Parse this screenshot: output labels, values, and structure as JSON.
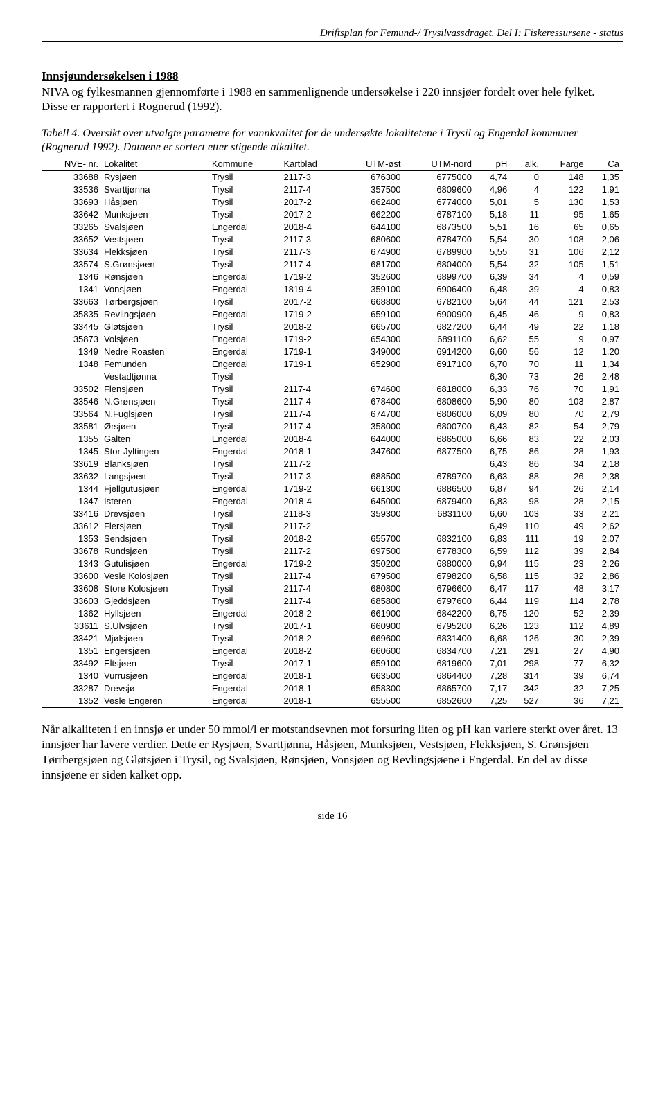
{
  "header": "Driftsplan for Femund-/ Trysilvassdraget. Del I: Fiskeressursene - status",
  "intro": {
    "title": "Innsjøundersøkelsen i 1988",
    "body": "NIVA og fylkesmannen gjennomførte i 1988 en sammenlignende undersøkelse i 220 innsjøer fordelt over hele fylket. Disse er rapportert i Rognerud (1992)."
  },
  "tableCaption": "Tabell 4. Oversikt over utvalgte parametre for vannkvalitet for de undersøkte lokalitetene i Trysil og Engerdal kommuner (Rognerud 1992). Dataene er sortert etter stigende alkalitet.",
  "columns": [
    "NVE- nr.",
    "Lokalitet",
    "Kommune",
    "Kartblad",
    "UTM-øst",
    "UTM-nord",
    "pH",
    "alk.",
    "Farge",
    "Ca"
  ],
  "alignments": [
    "right",
    "left",
    "left",
    "left",
    "right",
    "right",
    "right",
    "right",
    "right",
    "right"
  ],
  "rows": [
    [
      "33688",
      "Rysjøen",
      "Trysil",
      "2117-3",
      "676300",
      "6775000",
      "4,74",
      "0",
      "148",
      "1,35"
    ],
    [
      "33536",
      "Svarttjønna",
      "Trysil",
      "2117-4",
      "357500",
      "6809600",
      "4,96",
      "4",
      "122",
      "1,91"
    ],
    [
      "33693",
      "Håsjøen",
      "Trysil",
      "2017-2",
      "662400",
      "6774000",
      "5,01",
      "5",
      "130",
      "1,53"
    ],
    [
      "33642",
      "Munksjøen",
      "Trysil",
      "2017-2",
      "662200",
      "6787100",
      "5,18",
      "11",
      "95",
      "1,65"
    ],
    [
      "33265",
      "Svalsjøen",
      "Engerdal",
      "2018-4",
      "644100",
      "6873500",
      "5,51",
      "16",
      "65",
      "0,65"
    ],
    [
      "33652",
      "Vestsjøen",
      "Trysil",
      "2117-3",
      "680600",
      "6784700",
      "5,54",
      "30",
      "108",
      "2,06"
    ],
    [
      "33634",
      "Flekksjøen",
      "Trysil",
      "2117-3",
      "674900",
      "6789900",
      "5,55",
      "31",
      "106",
      "2,12"
    ],
    [
      "33574",
      "S.Grønsjøen",
      "Trysil",
      "2117-4",
      "681700",
      "6804000",
      "5,54",
      "32",
      "105",
      "1,51"
    ],
    [
      "1346",
      "Rønsjøen",
      "Engerdal",
      "1719-2",
      "352600",
      "6899700",
      "6,39",
      "34",
      "4",
      "0,59"
    ],
    [
      "1341",
      "Vonsjøen",
      "Engerdal",
      "1819-4",
      "359100",
      "6906400",
      "6,48",
      "39",
      "4",
      "0,83"
    ],
    [
      "33663",
      "Tørbergsjøen",
      "Trysil",
      "2017-2",
      "668800",
      "6782100",
      "5,64",
      "44",
      "121",
      "2,53"
    ],
    [
      "35835",
      "Revlingsjøen",
      "Engerdal",
      "1719-2",
      "659100",
      "6900900",
      "6,45",
      "46",
      "9",
      "0,83"
    ],
    [
      "33445",
      "Gløtsjøen",
      "Trysil",
      "2018-2",
      "665700",
      "6827200",
      "6,44",
      "49",
      "22",
      "1,18"
    ],
    [
      "35873",
      "Volsjøen",
      "Engerdal",
      "1719-2",
      "654300",
      "6891100",
      "6,62",
      "55",
      "9",
      "0,97"
    ],
    [
      "1349",
      "Nedre Roasten",
      "Engerdal",
      "1719-1",
      "349000",
      "6914200",
      "6,60",
      "56",
      "12",
      "1,20"
    ],
    [
      "1348",
      "Femunden",
      "Engerdal",
      "1719-1",
      "652900",
      "6917100",
      "6,70",
      "70",
      "11",
      "1,34"
    ],
    [
      "",
      "Vestadtjønna",
      "Trysil",
      "",
      "",
      "",
      "6,30",
      "73",
      "26",
      "2,48"
    ],
    [
      "33502",
      "Flensjøen",
      "Trysil",
      "2117-4",
      "674600",
      "6818000",
      "6,33",
      "76",
      "70",
      "1,91"
    ],
    [
      "33546",
      "N.Grønsjøen",
      "Trysil",
      "2117-4",
      "678400",
      "6808600",
      "5,90",
      "80",
      "103",
      "2,87"
    ],
    [
      "33564",
      "N.Fuglsjøen",
      "Trysil",
      "2117-4",
      "674700",
      "6806000",
      "6,09",
      "80",
      "70",
      "2,79"
    ],
    [
      "33581",
      "Ørsjøen",
      "Trysil",
      "2117-4",
      "358000",
      "6800700",
      "6,43",
      "82",
      "54",
      "2,79"
    ],
    [
      "1355",
      "Galten",
      "Engerdal",
      "2018-4",
      "644000",
      "6865000",
      "6,66",
      "83",
      "22",
      "2,03"
    ],
    [
      "1345",
      "Stor-Jyltingen",
      "Engerdal",
      "2018-1",
      "347600",
      "6877500",
      "6,75",
      "86",
      "28",
      "1,93"
    ],
    [
      "33619",
      "Blanksjøen",
      "Trysil",
      "2117-2",
      "",
      "",
      "6,43",
      "86",
      "34",
      "2,18"
    ],
    [
      "33632",
      "Langsjøen",
      "Trysil",
      "2117-3",
      "688500",
      "6789700",
      "6,63",
      "88",
      "26",
      "2,38"
    ],
    [
      "1344",
      "Fjellgutusjøen",
      "Engerdal",
      "1719-2",
      "661300",
      "6886500",
      "6,87",
      "94",
      "26",
      "2,14"
    ],
    [
      "1347",
      "Isteren",
      "Engerdal",
      "2018-4",
      "645000",
      "6879400",
      "6,83",
      "98",
      "28",
      "2,15"
    ],
    [
      "33416",
      "Drevsjøen",
      "Trysil",
      "2118-3",
      "359300",
      "6831100",
      "6,60",
      "103",
      "33",
      "2,21"
    ],
    [
      "33612",
      "Flersjøen",
      "Trysil",
      "2117-2",
      "",
      "",
      "6,49",
      "110",
      "49",
      "2,62"
    ],
    [
      "1353",
      "Sendsjøen",
      "Trysil",
      "2018-2",
      "655700",
      "6832100",
      "6,83",
      "111",
      "19",
      "2,07"
    ],
    [
      "33678",
      "Rundsjøen",
      "Trysil",
      "2117-2",
      "697500",
      "6778300",
      "6,59",
      "112",
      "39",
      "2,84"
    ],
    [
      "1343",
      "Gutulisjøen",
      "Engerdal",
      "1719-2",
      "350200",
      "6880000",
      "6,94",
      "115",
      "23",
      "2,26"
    ],
    [
      "33600",
      "Vesle Kolosjøen",
      "Trysil",
      "2117-4",
      "679500",
      "6798200",
      "6,58",
      "115",
      "32",
      "2,86"
    ],
    [
      "33608",
      "Store Kolosjøen",
      "Trysil",
      "2117-4",
      "680800",
      "6796600",
      "6,47",
      "117",
      "48",
      "3,17"
    ],
    [
      "33603",
      "Gjeddsjøen",
      "Trysil",
      "2117-4",
      "685800",
      "6797600",
      "6,44",
      "119",
      "114",
      "2,78"
    ],
    [
      "1362",
      "Hyllsjøen",
      "Engerdal",
      "2018-2",
      "661900",
      "6842200",
      "6,75",
      "120",
      "52",
      "2,39"
    ],
    [
      "33611",
      "S.Ulvsjøen",
      "Trysil",
      "2017-1",
      "660900",
      "6795200",
      "6,26",
      "123",
      "112",
      "4,89"
    ],
    [
      "33421",
      "Mjølsjøen",
      "Trysil",
      "2018-2",
      "669600",
      "6831400",
      "6,68",
      "126",
      "30",
      "2,39"
    ],
    [
      "1351",
      "Engersjøen",
      "Engerdal",
      "2018-2",
      "660600",
      "6834700",
      "7,21",
      "291",
      "27",
      "4,90"
    ],
    [
      "33492",
      "Eltsjøen",
      "Trysil",
      "2017-1",
      "659100",
      "6819600",
      "7,01",
      "298",
      "77",
      "6,32"
    ],
    [
      "1340",
      "Vurrusjøen",
      "Engerdal",
      "2018-1",
      "663500",
      "6864400",
      "7,28",
      "314",
      "39",
      "6,74"
    ],
    [
      "33287",
      "Drevsjø",
      "Engerdal",
      "2018-1",
      "658300",
      "6865700",
      "7,17",
      "342",
      "32",
      "7,25"
    ],
    [
      "1352",
      "Vesle Engeren",
      "Engerdal",
      "2018-1",
      "655500",
      "6852600",
      "7,25",
      "527",
      "36",
      "7,21"
    ]
  ],
  "outro": "Når alkaliteten i en innsjø er under 50 mmol/l er motstandsevnen mot forsuring liten og pH kan variere sterkt over året. 13 innsjøer har lavere verdier. Dette er Rysjøen, Svarttjønna, Håsjøen, Munksjøen, Vestsjøen, Flekksjøen, S. Grønsjøen Tørrbergsjøen og Gløtsjøen i Trysil, og Svalsjøen, Rønsjøen, Vonsjøen og Revlingsjøene i Engerdal. En del av disse innsjøene er siden kalket opp.",
  "footer": "side 16"
}
